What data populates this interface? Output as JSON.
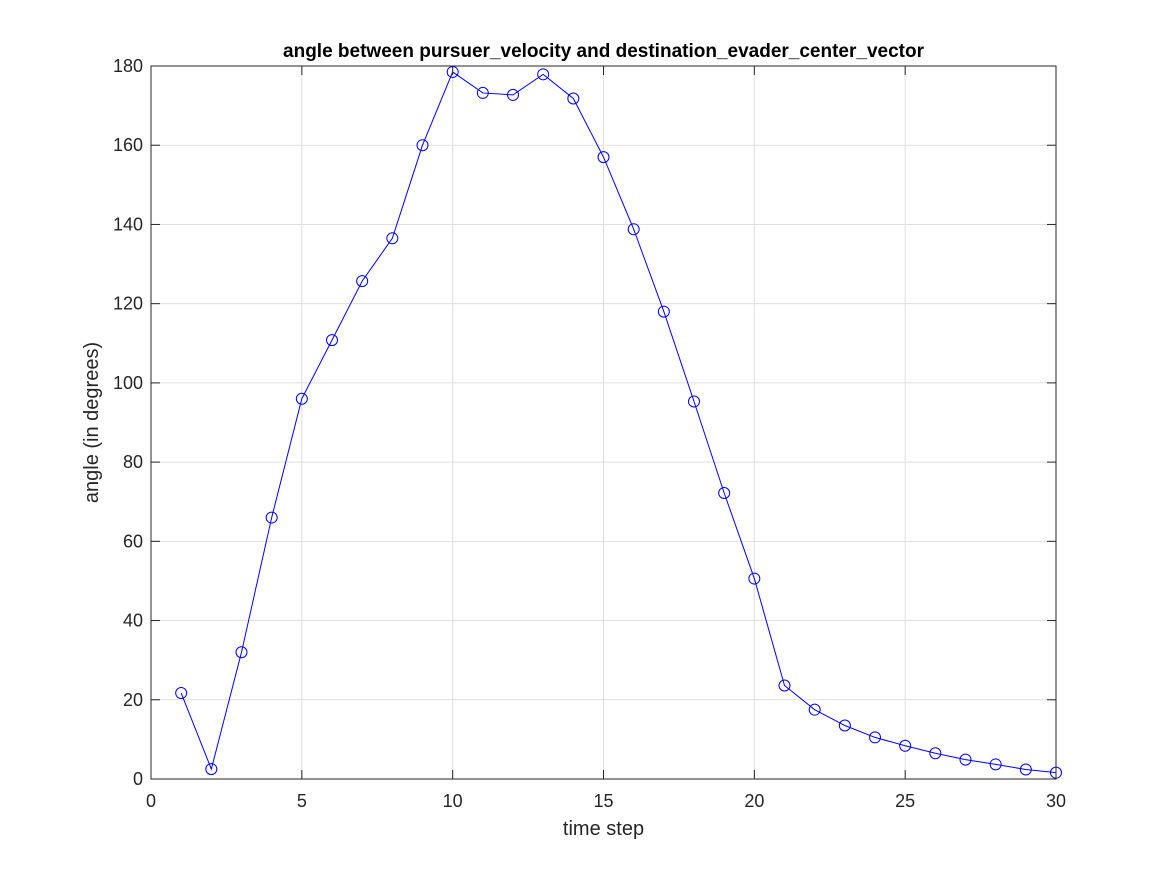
{
  "chart_data": {
    "type": "line",
    "title": "angle between pursuer_velocity and destination_evader_center_vector",
    "xlabel": "time step",
    "ylabel": "angle (in degrees)",
    "xlim": [
      0,
      30
    ],
    "ylim": [
      0,
      180
    ],
    "xticks": [
      0,
      5,
      10,
      15,
      20,
      25,
      30
    ],
    "yticks": [
      0,
      20,
      40,
      60,
      80,
      100,
      120,
      140,
      160,
      180
    ],
    "grid": true,
    "series": [
      {
        "name": "angle",
        "color": "#0000ff",
        "marker": "circle",
        "x": [
          1,
          2,
          3,
          4,
          5,
          6,
          7,
          8,
          9,
          10,
          11,
          12,
          13,
          14,
          15,
          16,
          17,
          18,
          19,
          20,
          21,
          22,
          23,
          24,
          25,
          26,
          27,
          28,
          29,
          30
        ],
        "values": [
          21.7,
          2.5,
          32.0,
          66.0,
          96.0,
          110.8,
          125.7,
          136.5,
          160.0,
          178.5,
          173.2,
          172.7,
          177.9,
          171.8,
          157.0,
          138.8,
          118.0,
          95.3,
          72.2,
          50.6,
          23.6,
          17.5,
          13.5,
          10.5,
          8.4,
          6.5,
          4.9,
          3.7,
          2.4,
          1.6
        ]
      }
    ]
  }
}
